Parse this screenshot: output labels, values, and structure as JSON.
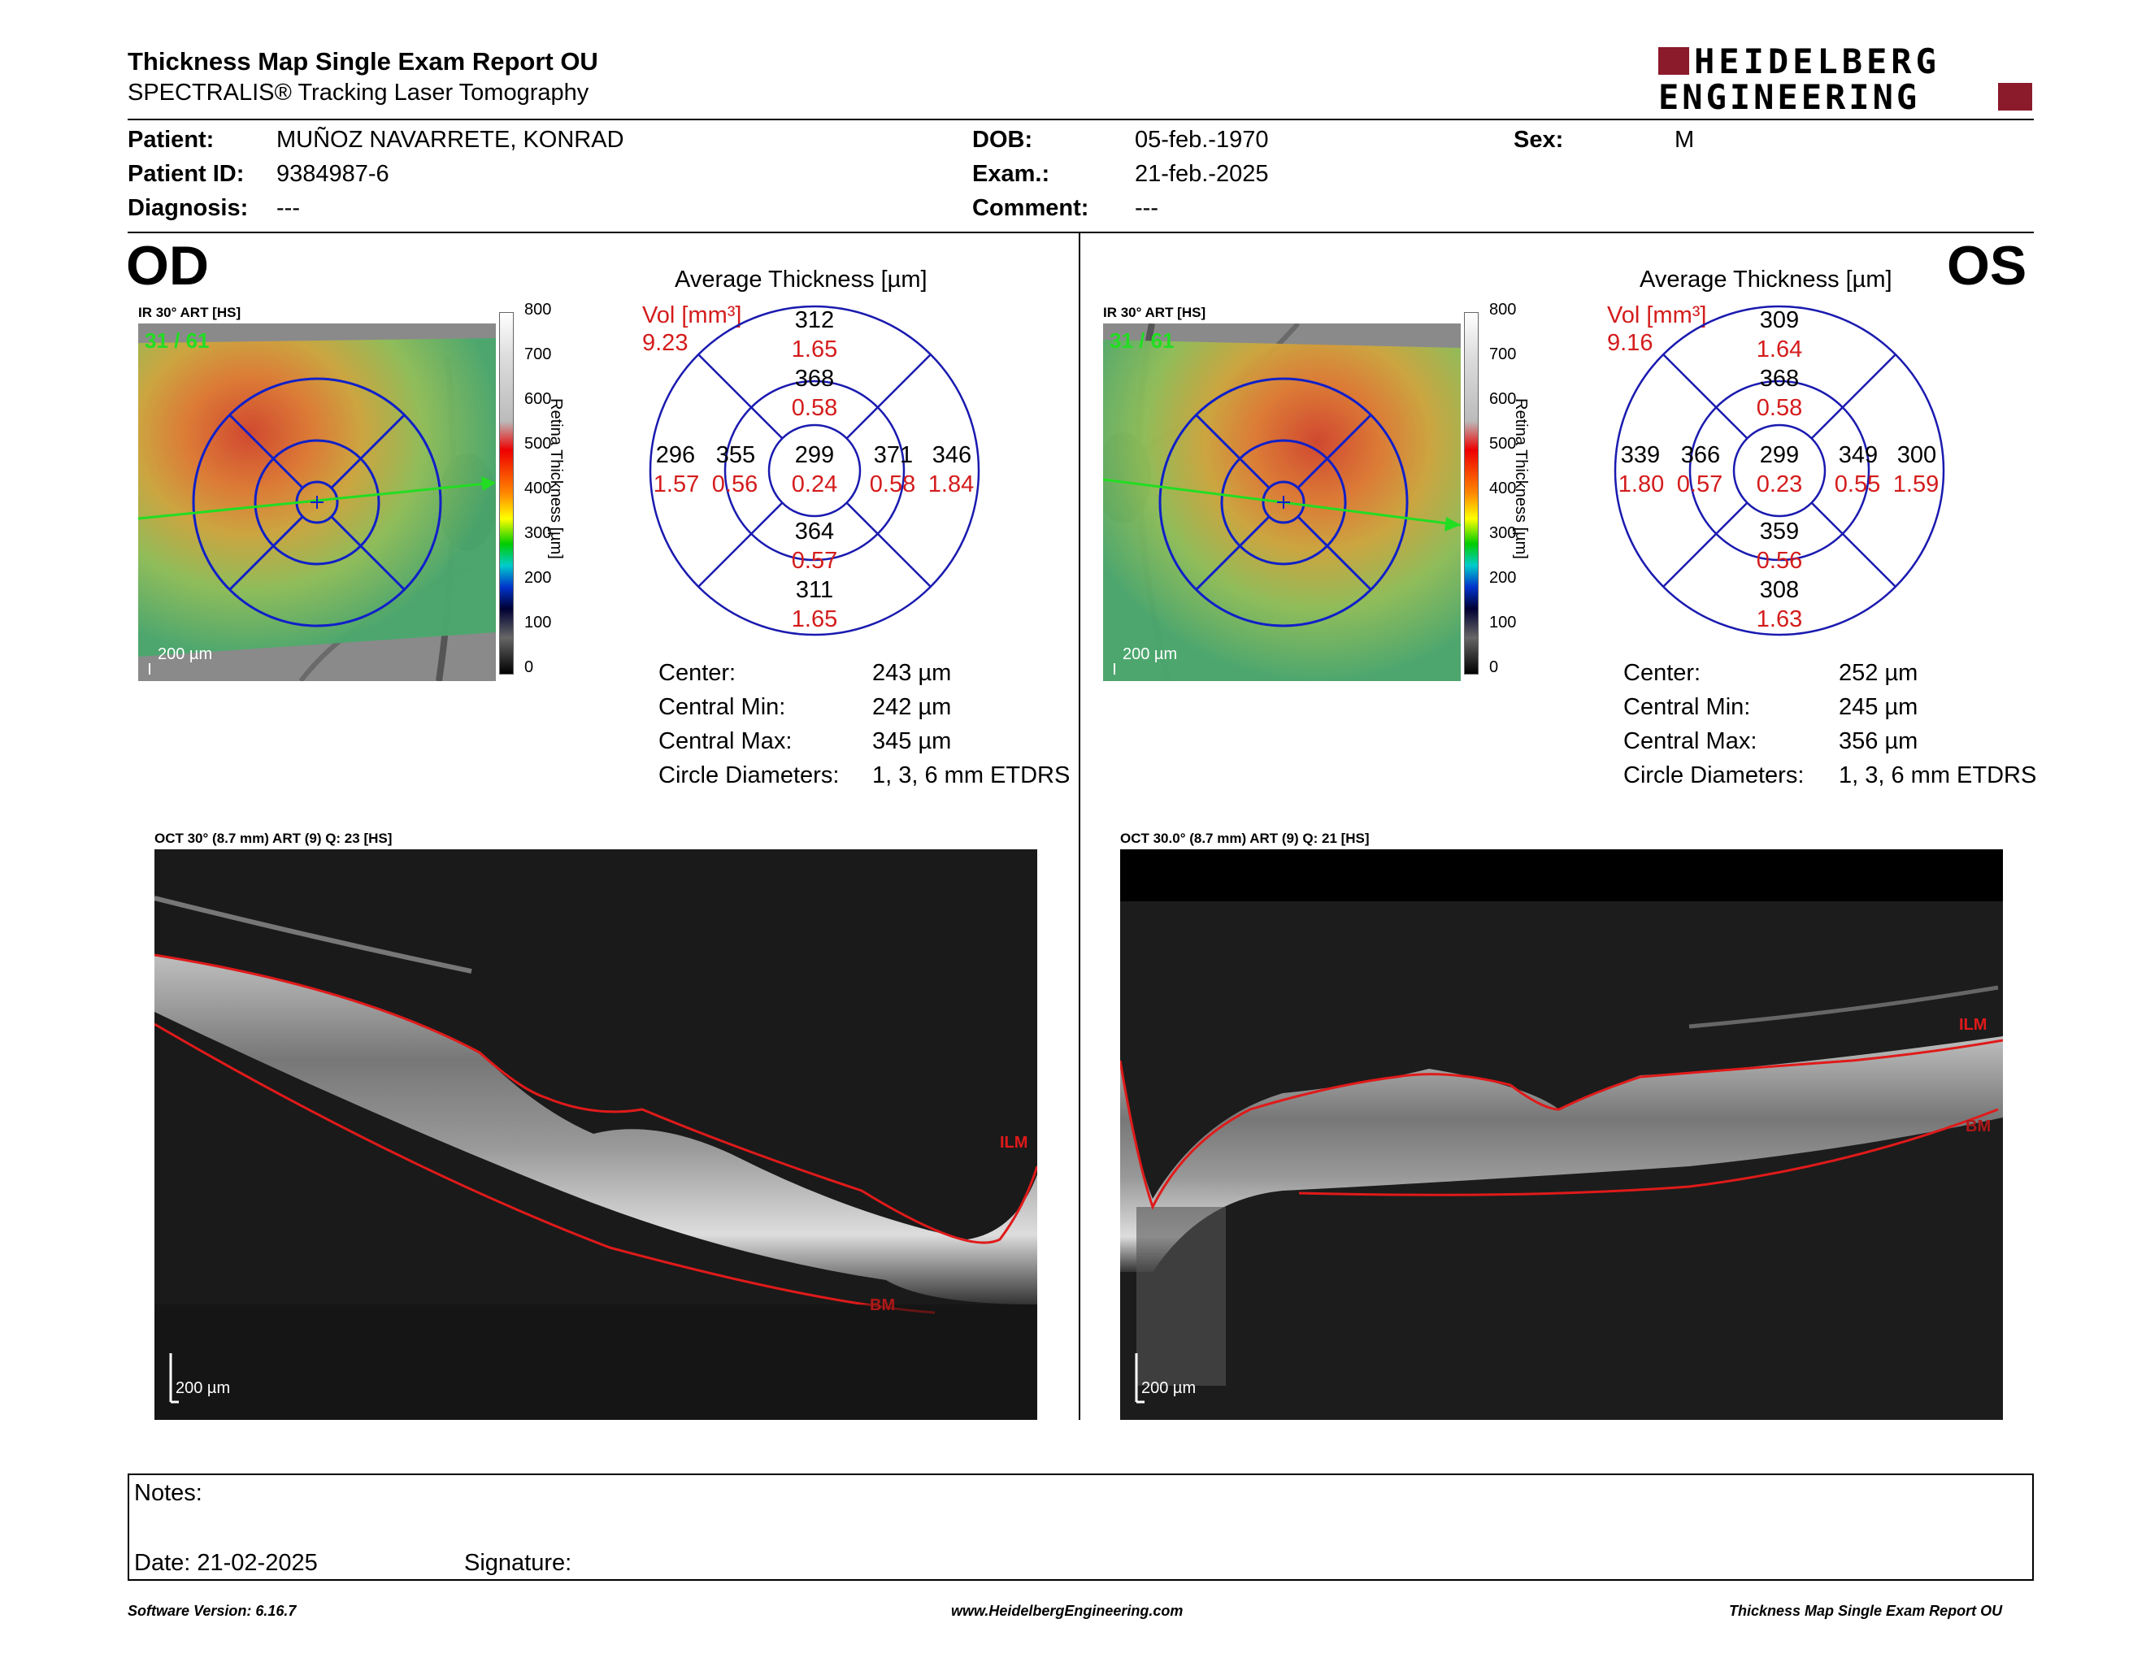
{
  "header": {
    "title": "Thickness Map Single Exam Report OU",
    "subtitle": "SPECTRALIS® Tracking Laser Tomography",
    "logo_line1": "HEIDELBERG",
    "logo_line2": "ENGINEERING",
    "brand_color": "#8b1a2b"
  },
  "patient": {
    "patient_label": "Patient:",
    "patient_value": "MUÑOZ NAVARRETE, KONRAD",
    "id_label": "Patient ID:",
    "id_value": "9384987-6",
    "diag_label": "Diagnosis:",
    "diag_value": "---",
    "dob_label": "DOB:",
    "dob_value": "05-feb.-1970",
    "exam_label": "Exam.:",
    "exam_value": "21-feb.-2025",
    "comment_label": "Comment:",
    "comment_value": "---",
    "sex_label": "Sex:",
    "sex_value": "M"
  },
  "od": {
    "eye": "OD",
    "ir_label": "IR 30° ART [HS]",
    "frame": "31 / 61",
    "scale": "200 µm",
    "avg_title": "Average Thickness [µm]",
    "vol_label": "Vol [mm³]",
    "vol_value": "9.23",
    "grid": {
      "center_t": "299",
      "center_v": "0.24",
      "inner_sup_t": "368",
      "inner_sup_v": "0.58",
      "inner_inf_t": "364",
      "inner_inf_v": "0.57",
      "inner_temp_t": "355",
      "inner_temp_v": "0.56",
      "inner_nas_t": "371",
      "inner_nas_v": "0.58",
      "outer_sup_t": "312",
      "outer_sup_v": "1.65",
      "outer_inf_t": "311",
      "outer_inf_v": "1.65",
      "outer_temp_t": "296",
      "outer_temp_v": "1.57",
      "outer_nas_t": "346",
      "outer_nas_v": "1.84"
    },
    "stats": {
      "center_label": "Center:",
      "center_value": "243 µm",
      "min_label": "Central Min:",
      "min_value": "242 µm",
      "max_label": "Central Max:",
      "max_value": "345 µm",
      "diam_label": "Circle Diameters:",
      "diam_value": "1, 3, 6 mm ETDRS"
    },
    "oct_label": "OCT 30° (8.7 mm) ART (9) Q: 23 [HS]",
    "ilm": "ILM",
    "bm": "BM"
  },
  "os": {
    "eye": "OS",
    "ir_label": "IR 30° ART [HS]",
    "frame": "31 / 61",
    "scale": "200 µm",
    "avg_title": "Average Thickness [µm]",
    "vol_label": "Vol [mm³]",
    "vol_value": "9.16",
    "grid": {
      "center_t": "299",
      "center_v": "0.23",
      "inner_sup_t": "368",
      "inner_sup_v": "0.58",
      "inner_inf_t": "359",
      "inner_inf_v": "0.56",
      "inner_temp_t": "366",
      "inner_temp_v": "0.57",
      "inner_nas_t": "349",
      "inner_nas_v": "0.55",
      "outer_sup_t": "309",
      "outer_sup_v": "1.64",
      "outer_inf_t": "308",
      "outer_inf_v": "1.63",
      "outer_temp_t": "339",
      "outer_temp_v": "1.80",
      "outer_nas_t": "300",
      "outer_nas_v": "1.59"
    },
    "stats": {
      "center_label": "Center:",
      "center_value": "252 µm",
      "min_label": "Central Min:",
      "min_value": "245 µm",
      "max_label": "Central Max:",
      "max_value": "356 µm",
      "diam_label": "Circle Diameters:",
      "diam_value": "1, 3, 6 mm ETDRS"
    },
    "oct_label": "OCT 30.0° (8.7 mm) ART (9) Q: 21 [HS]",
    "ilm": "ILM",
    "bm": "BM"
  },
  "colorbar": {
    "ticks": [
      "800",
      "700",
      "600",
      "500",
      "400",
      "300",
      "200",
      "100",
      "0"
    ],
    "label": "Retina Thickness [µm]"
  },
  "notes": {
    "notes_label": "Notes:",
    "date_label": "Date: 21-02-2025",
    "signature_label": "Signature:"
  },
  "footer": {
    "software": "Software Version: 6.16.7",
    "website": "www.HeidelbergEngineering.com",
    "report": "Thickness Map Single Exam Report OU"
  }
}
